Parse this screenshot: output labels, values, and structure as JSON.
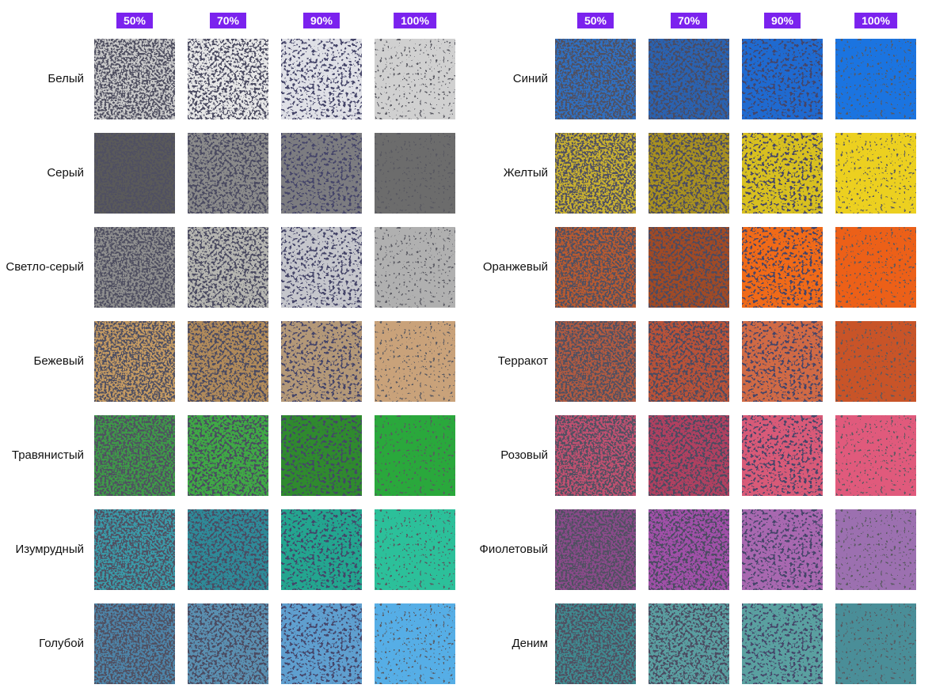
{
  "panels": [
    {
      "headers": [
        "50%",
        "70%",
        "90%",
        "100%"
      ],
      "rows": [
        "Белый",
        "Серый",
        "Светло-серый",
        "Бежевый",
        "Травянистый",
        "Изумрудный",
        "Голубой"
      ]
    },
    {
      "headers": [
        "50%",
        "70%",
        "90%",
        "100%"
      ],
      "rows": [
        "Синий",
        "Желтый",
        "Оранжевый",
        "Терракот",
        "Розовый",
        "Фиолетовый",
        "Деним"
      ]
    }
  ]
}
